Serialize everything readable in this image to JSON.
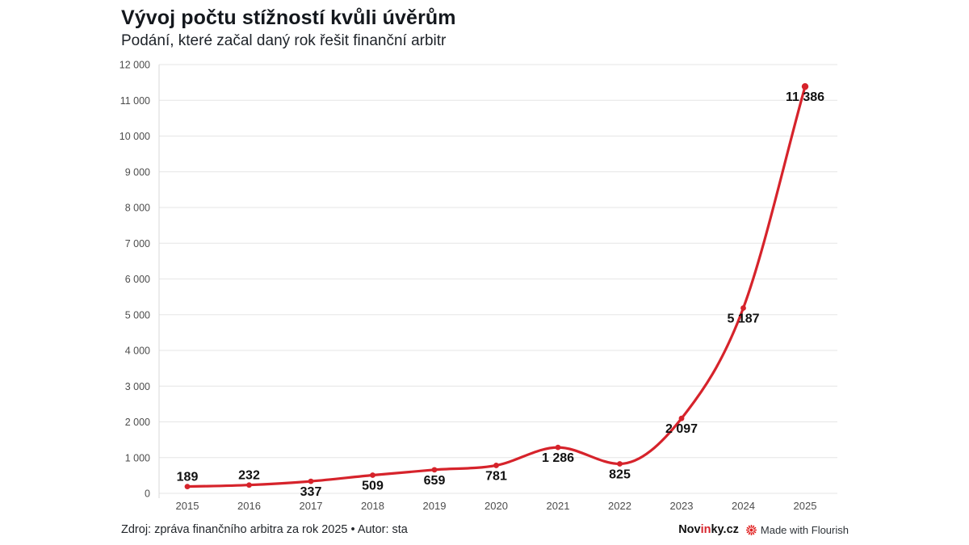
{
  "header": {
    "title": "Vývoj počtu stížností kvůli úvěrům",
    "subtitle": "Podání, které začal daný rok řešit finanční arbitr"
  },
  "chart_data": {
    "type": "line",
    "title": "Vývoj počtu stížností kvůli úvěrům",
    "subtitle": "Podání, které začal daný rok řešit finanční arbitr",
    "categories": [
      "2015",
      "2016",
      "2017",
      "2018",
      "2019",
      "2020",
      "2021",
      "2022",
      "2023",
      "2024",
      "2025"
    ],
    "values": [
      189,
      232,
      337,
      509,
      659,
      781,
      1286,
      825,
      2097,
      5187,
      11386
    ],
    "point_labels": [
      "189",
      "232",
      "337",
      "509",
      "659",
      "781",
      "1 286",
      "825",
      "2 097",
      "5 187",
      "11 386"
    ],
    "label_placement": [
      "above",
      "above",
      "below",
      "below",
      "below",
      "below",
      "below",
      "below",
      "below",
      "below",
      "below"
    ],
    "xlabel": "",
    "ylabel": "",
    "ylim": [
      0,
      12000
    ],
    "ytick_step": 1000,
    "ytick_labels": [
      "0",
      "1 000",
      "2 000",
      "3 000",
      "4 000",
      "5 000",
      "6 000",
      "7 000",
      "8 000",
      "9 000",
      "10 000",
      "11 000",
      "12 000"
    ],
    "grid": true,
    "legend_position": "none",
    "line_color": "#d6232b",
    "point_color": "#d6232b",
    "data_label_color": "#111111",
    "axis_text_color": "#4d4d4d",
    "grid_color": "#e6e6e6",
    "axis_line_color": "#d8d8d8"
  },
  "footer": {
    "source": "Zdroj: zpráva finančního arbitra za rok 2025 • Autor: sta",
    "brand": {
      "part1": "Nov",
      "part2": "in",
      "part3": "ky.cz"
    },
    "attribution": "Made with Flourish",
    "attribution_icon_color": "#e01e1e"
  }
}
